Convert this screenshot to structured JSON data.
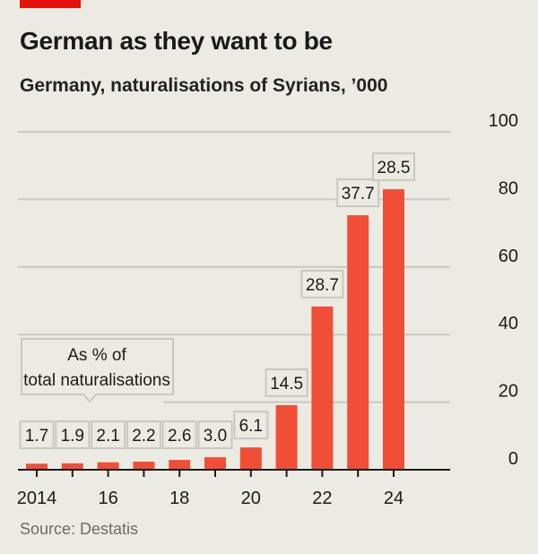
{
  "title": "German as they want to be",
  "subtitle": "Germany, naturalisations of Syrians, ’000",
  "source": "Source: Destatis",
  "colors": {
    "bar": "#f04e37",
    "accent": "#e3120b",
    "grid": "#c9c8c0",
    "background": "#ecebe3"
  },
  "chart_data": {
    "type": "bar",
    "categories": [
      "2014",
      "2015",
      "2016",
      "2017",
      "2018",
      "2019",
      "2020",
      "2021",
      "2022",
      "2023",
      "2024"
    ],
    "values": [
      1.8,
      1.9,
      2.2,
      2.4,
      2.9,
      3.7,
      6.6,
      19.1,
      48.3,
      75.3,
      83.0
    ],
    "data_labels": [
      "1.7",
      "1.9",
      "2.1",
      "2.2",
      "2.6",
      "3.0",
      "6.1",
      "14.5",
      "28.7",
      "37.7",
      "28.5"
    ],
    "data_labels_title": "As % of total naturalisations",
    "x_tick_labels": [
      "2014",
      "",
      "16",
      "",
      "18",
      "",
      "20",
      "",
      "22",
      "",
      "24"
    ],
    "y_ticks": [
      0,
      20,
      40,
      60,
      80,
      100
    ],
    "ylim": [
      0,
      100
    ],
    "y_axis_side": "right",
    "grid": true
  }
}
